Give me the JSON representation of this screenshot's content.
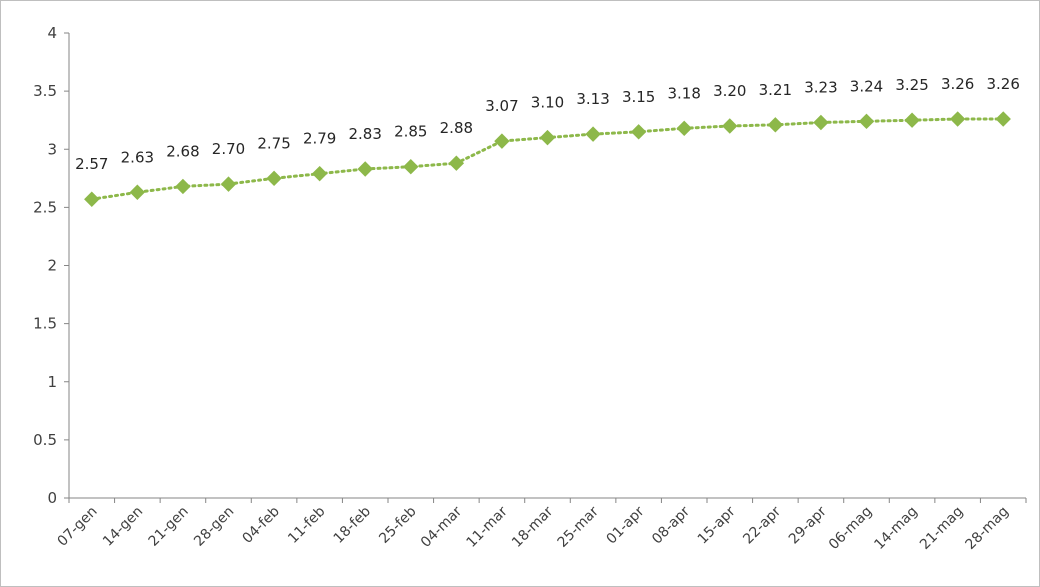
{
  "chart_data": {
    "type": "line",
    "title": "",
    "xlabel": "",
    "ylabel": "",
    "ylim": [
      0,
      4
    ],
    "yticks": [
      "0",
      "0.5",
      "1",
      "1.5",
      "2",
      "2.5",
      "3",
      "3.5",
      "4"
    ],
    "grid": false,
    "legend": "none",
    "line_style": "dotted",
    "marker": "diamond",
    "color": "#8db84a",
    "categories": [
      "07-gen",
      "14-gen",
      "21-gen",
      "28-gen",
      "04-feb",
      "11-feb",
      "18-feb",
      "25-feb",
      "04-mar",
      "11-mar",
      "18-mar",
      "25-mar",
      "01-apr",
      "08-apr",
      "15-apr",
      "22-apr",
      "29-apr",
      "06-mag",
      "14-mag",
      "21-mag",
      "28-mag"
    ],
    "values": [
      2.57,
      2.63,
      2.68,
      2.7,
      2.75,
      2.79,
      2.83,
      2.85,
      2.88,
      3.07,
      3.1,
      3.13,
      3.15,
      3.18,
      3.2,
      3.21,
      3.23,
      3.24,
      3.25,
      3.26,
      3.26
    ],
    "value_labels": [
      "2.57",
      "2.63",
      "2.68",
      "2.70",
      "2.75",
      "2.79",
      "2.83",
      "2.85",
      "2.88",
      "3.07",
      "3.10",
      "3.13",
      "3.15",
      "3.18",
      "3.20",
      "3.21",
      "3.23",
      "3.24",
      "3.25",
      "3.26",
      "3.26"
    ]
  }
}
